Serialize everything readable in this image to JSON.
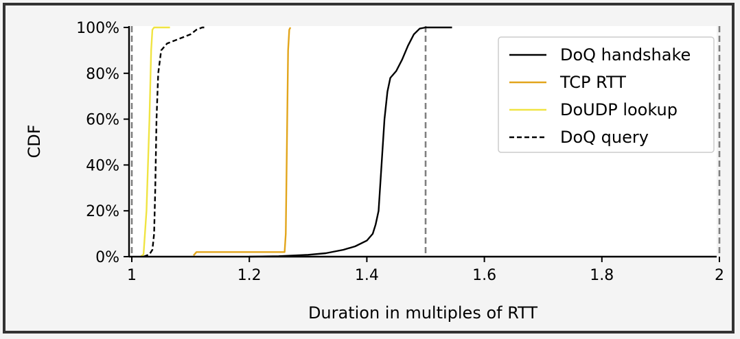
{
  "chart_data": {
    "type": "line",
    "title": "",
    "xlabel": "Duration in multiples of RTT",
    "ylabel": "CDF",
    "xlim": [
      1.0,
      2.0
    ],
    "ylim": [
      0,
      100
    ],
    "x_ticks": [
      {
        "value": 1.0,
        "label": "1"
      },
      {
        "value": 1.2,
        "label": "1.2"
      },
      {
        "value": 1.4,
        "label": "1.4"
      },
      {
        "value": 1.6,
        "label": "1.6"
      },
      {
        "value": 1.8,
        "label": "1.8"
      },
      {
        "value": 2.0,
        "label": "2"
      }
    ],
    "y_ticks": [
      {
        "value": 0,
        "label": "0%"
      },
      {
        "value": 20,
        "label": "20%"
      },
      {
        "value": 40,
        "label": "40%"
      },
      {
        "value": 60,
        "label": "60%"
      },
      {
        "value": 80,
        "label": "80%"
      },
      {
        "value": 100,
        "label": "100%"
      }
    ],
    "reference_lines_x": [
      1.0,
      1.5,
      2.0
    ],
    "grid": false,
    "legend_position": "top-right",
    "series": [
      {
        "name": "DoQ handshake",
        "color": "#000000",
        "dash": "solid",
        "points": [
          [
            1.2,
            0
          ],
          [
            1.25,
            0.2
          ],
          [
            1.3,
            0.8
          ],
          [
            1.33,
            1.5
          ],
          [
            1.36,
            3
          ],
          [
            1.38,
            4.5
          ],
          [
            1.4,
            7
          ],
          [
            1.41,
            10
          ],
          [
            1.415,
            14
          ],
          [
            1.42,
            20
          ],
          [
            1.425,
            40
          ],
          [
            1.43,
            60
          ],
          [
            1.435,
            72
          ],
          [
            1.44,
            78
          ],
          [
            1.45,
            81
          ],
          [
            1.46,
            86
          ],
          [
            1.47,
            92
          ],
          [
            1.48,
            97
          ],
          [
            1.49,
            99.5
          ],
          [
            1.5,
            100
          ],
          [
            1.545,
            100
          ]
        ]
      },
      {
        "name": "TCP RTT",
        "color": "#e2a51b",
        "dash": "solid",
        "points": [
          [
            1.105,
            0.5
          ],
          [
            1.11,
            2
          ],
          [
            1.26,
            2
          ],
          [
            1.262,
            10
          ],
          [
            1.264,
            50
          ],
          [
            1.266,
            90
          ],
          [
            1.268,
            99
          ],
          [
            1.27,
            100
          ]
        ]
      },
      {
        "name": "DoUDP lookup",
        "color": "#f0e442",
        "dash": "solid",
        "points": [
          [
            1.015,
            0
          ],
          [
            1.02,
            1
          ],
          [
            1.025,
            20
          ],
          [
            1.03,
            60
          ],
          [
            1.033,
            90
          ],
          [
            1.035,
            99
          ],
          [
            1.038,
            100
          ],
          [
            1.065,
            100
          ]
        ]
      },
      {
        "name": "DoQ query",
        "color": "#000000",
        "dash": "dashed",
        "points": [
          [
            1.02,
            0
          ],
          [
            1.03,
            1
          ],
          [
            1.035,
            3
          ],
          [
            1.038,
            10
          ],
          [
            1.04,
            30
          ],
          [
            1.042,
            60
          ],
          [
            1.045,
            80
          ],
          [
            1.05,
            90
          ],
          [
            1.06,
            93
          ],
          [
            1.08,
            95
          ],
          [
            1.1,
            97
          ],
          [
            1.11,
            99
          ],
          [
            1.12,
            100
          ],
          [
            1.125,
            100
          ]
        ]
      }
    ]
  }
}
